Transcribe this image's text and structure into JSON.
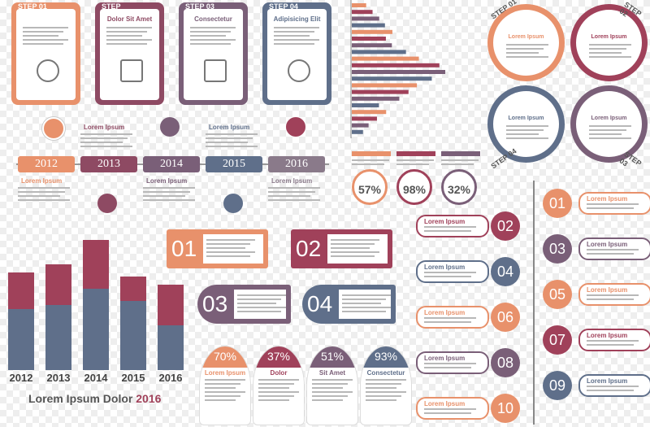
{
  "step_cards": [
    {
      "step": "STEP 01",
      "title": "",
      "icon": "search-icon",
      "color": "#e8916b"
    },
    {
      "step": "STEP",
      "title": "Dolor Sit Amet",
      "icon": "calendar-icon",
      "color": "#8e4a63"
    },
    {
      "step": "STEP 03",
      "title": "Consectetur",
      "icon": "wallet-icon",
      "color": "#7a5f78"
    },
    {
      "step": "STEP 04",
      "title": "Adipisicing Elit",
      "icon": "pie-chart-icon",
      "color": "#5f6f8a"
    }
  ],
  "timeline": {
    "years": [
      "2012",
      "2013",
      "2014",
      "2015",
      "2016"
    ],
    "labels": [
      "Lorem Ipsum",
      "Lorem Ipsum",
      "Lorem Ipsum",
      "Lorem Ipsum",
      "Lorem Ipsum"
    ]
  },
  "hbar": {
    "values": [
      10.8,
      15.6,
      20.6,
      24.9,
      30.5,
      25.6,
      30.1,
      40.7,
      50.4,
      65.8,
      70.2,
      60.1,
      48.9,
      42.6,
      35.7,
      20.4,
      25.8,
      18.9,
      12.6,
      8.4
    ],
    "labels": [
      "",
      "",
      "",
      "",
      "",
      "",
      "",
      "",
      "",
      "",
      "",
      "",
      "",
      "",
      "",
      "",
      "",
      "",
      "",
      ""
    ]
  },
  "pct_rings": [
    {
      "value": "57%",
      "color": "#e8916b"
    },
    {
      "value": "98%",
      "color": "#a0415a"
    },
    {
      "value": "32%",
      "color": "#7a5f78"
    }
  ],
  "big_bars": {
    "years": [
      "2012",
      "2013",
      "2014",
      "2015",
      "2016"
    ],
    "top": [
      45,
      50,
      60,
      30,
      50
    ],
    "bottom": [
      75,
      80,
      100,
      85,
      55
    ],
    "title": "Lorem Ipsum Dolor",
    "year": "2016"
  },
  "numbered_cards": [
    {
      "num": "01",
      "color": "#e8916b"
    },
    {
      "num": "02",
      "color": "#a0415a"
    },
    {
      "num": "03",
      "color": "#7a5f78"
    },
    {
      "num": "04",
      "color": "#5f6f8a"
    }
  ],
  "bubbles": [
    {
      "pct": "70%",
      "label": "Lorem Ipsum",
      "color": "#e8916b"
    },
    {
      "pct": "37%",
      "label": "Dolor",
      "color": "#a0415a"
    },
    {
      "pct": "51%",
      "label": "Sit Amet",
      "color": "#7a5f78"
    },
    {
      "pct": "93%",
      "label": "Consectetur",
      "color": "#5f6f8a"
    }
  ],
  "list_items": [
    {
      "num": "01",
      "label": "Lorem Ipsum",
      "color": "#e8916b"
    },
    {
      "num": "02",
      "label": "Lorem Ipsum",
      "color": "#a0415a"
    },
    {
      "num": "03",
      "label": "Lorem Ipsum",
      "color": "#7a5f78"
    },
    {
      "num": "04",
      "label": "Lorem Ipsum",
      "color": "#5f6f8a"
    },
    {
      "num": "05",
      "label": "Lorem Ipsum",
      "color": "#e8916b"
    },
    {
      "num": "06",
      "label": "Lorem Ipsum",
      "color": "#e8916b"
    },
    {
      "num": "07",
      "label": "Lorem Ipsum",
      "color": "#a0415a"
    },
    {
      "num": "08",
      "label": "Lorem Ipsum",
      "color": "#7a5f78"
    },
    {
      "num": "09",
      "label": "Lorem Ipsum",
      "color": "#5f6f8a"
    },
    {
      "num": "10",
      "label": "Lorem Ipsum",
      "color": "#e8916b"
    }
  ],
  "circle_steps": [
    {
      "step": "STEP 01",
      "label": "Lorem Ipsum",
      "color": "#e8916b"
    },
    {
      "step": "STEP 02",
      "label": "Lorem Ipsum",
      "color": "#a0415a"
    },
    {
      "step": "STEP 04",
      "label": "Lorem Ipsum",
      "color": "#5f6f8a"
    },
    {
      "step": "STEP 03",
      "label": "Lorem Ipsum",
      "color": "#7a5f78"
    }
  ]
}
